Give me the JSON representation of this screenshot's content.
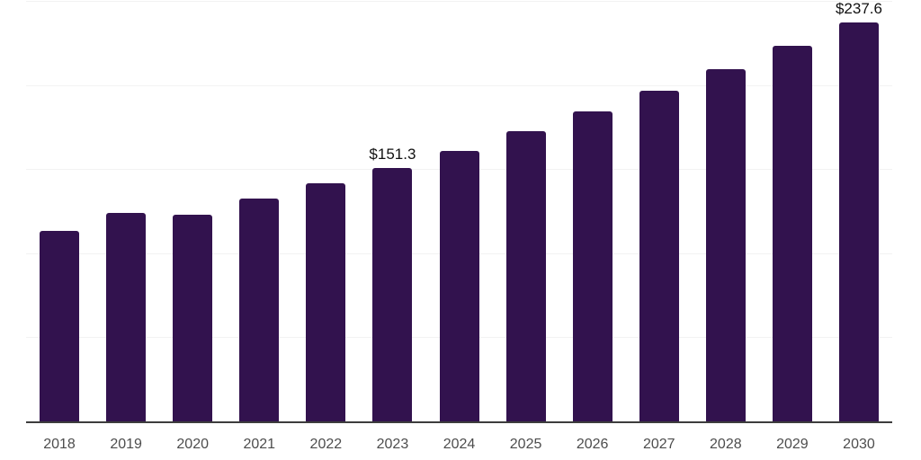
{
  "chart": {
    "background": "#ffffff",
    "bar_color": "#32124e",
    "gridline_color": "#f2f2f2",
    "axis_line_color": "#3d3d3d",
    "tick_label_color": "#4d4d4d",
    "data_label_color": "#111111"
  },
  "chart_data": {
    "type": "bar",
    "categories": [
      "2018",
      "2019",
      "2020",
      "2021",
      "2022",
      "2023",
      "2024",
      "2025",
      "2026",
      "2027",
      "2028",
      "2029",
      "2030"
    ],
    "values": [
      114.0,
      124.7,
      123.4,
      132.9,
      141.9,
      151.3,
      161.6,
      173.1,
      184.7,
      197.1,
      209.8,
      224.0,
      237.6
    ],
    "data_labels": [
      null,
      null,
      null,
      null,
      null,
      "$151.3",
      null,
      null,
      null,
      null,
      null,
      null,
      "$237.6"
    ],
    "title": "",
    "xlabel": "",
    "ylabel": "",
    "ylim": [
      0,
      250
    ],
    "grid_step": 50,
    "grid": true,
    "legend": false
  }
}
